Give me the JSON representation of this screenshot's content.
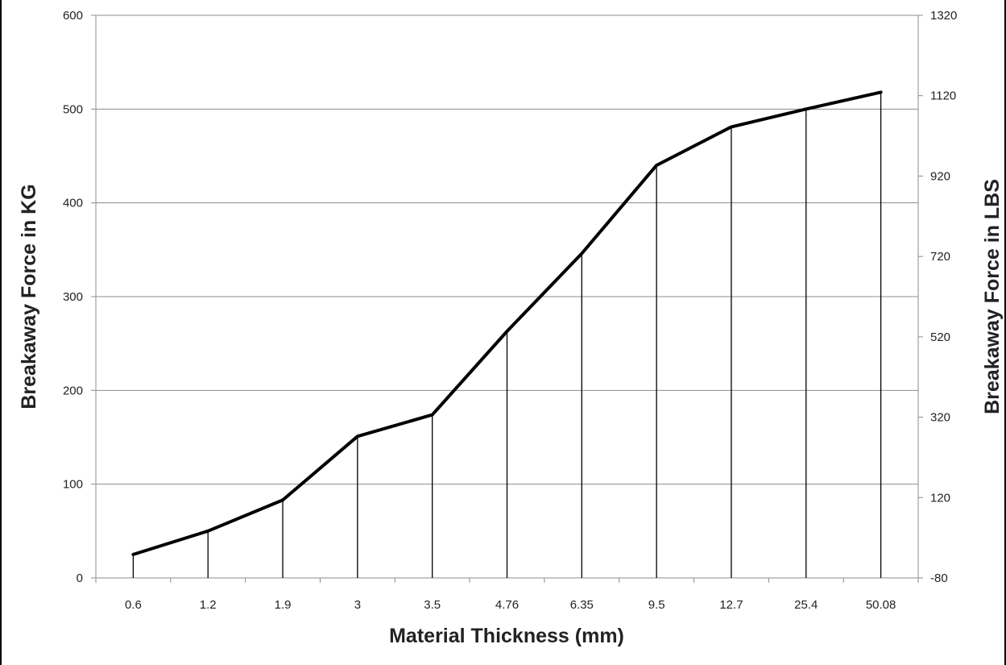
{
  "chart_data": {
    "type": "line",
    "title": "",
    "xlabel": "Material Thickness (mm)",
    "ylabel": "Breakaway Force in KG",
    "y2label": "Breakaway Force in LBS",
    "categories": [
      "0.6",
      "1.2",
      "1.9",
      "3",
      "3.5",
      "4.76",
      "6.35",
      "9.5",
      "12.7",
      "25.4",
      "50.08"
    ],
    "series": [
      {
        "values": [
          25,
          50,
          83,
          151,
          174,
          263,
          346,
          440,
          481,
          500,
          518
        ]
      }
    ],
    "ylim": [
      0,
      600
    ],
    "yticks": [
      0,
      100,
      200,
      300,
      400,
      500,
      600
    ],
    "y2lim": [
      -80,
      1320
    ],
    "y2ticks": [
      -80,
      120,
      320,
      520,
      720,
      920,
      1120,
      1320
    ],
    "drop_lines": true,
    "grid": "horizontal",
    "legend": "none",
    "colors": {
      "line": "#000000",
      "grid": "#8c8c8c",
      "axis": "#8c8c8c"
    }
  }
}
